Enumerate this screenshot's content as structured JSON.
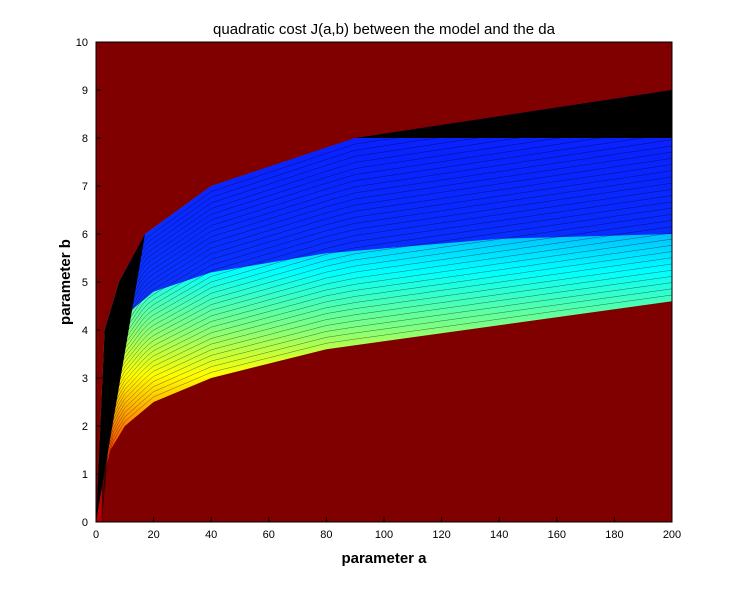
{
  "chart_data": {
    "type": "heatmap",
    "title": "quadratic cost J(a,b) between the model and the da",
    "xlabel": "parameter a",
    "ylabel": "parameter b",
    "xlim": [
      0,
      200
    ],
    "ylim": [
      0,
      10
    ],
    "x_ticks": [
      "0",
      "20",
      "40",
      "60",
      "80",
      "100",
      "120",
      "140",
      "160",
      "180",
      "200"
    ],
    "y_ticks": [
      "0",
      "1",
      "2",
      "3",
      "4",
      "5",
      "6",
      "7",
      "8",
      "9",
      "10"
    ],
    "colormap": "jet",
    "background_color": "#800000",
    "saturated_region_color": "#000000",
    "contour_line_color": "#000000",
    "regions": {
      "upper_black_boundary": [
        [
          0,
          0
        ],
        [
          3,
          4
        ],
        [
          8,
          5
        ],
        [
          17,
          6
        ],
        [
          40,
          7
        ],
        [
          90,
          8
        ],
        [
          200,
          9
        ]
      ],
      "lower_boundary": [
        [
          2,
          0
        ],
        [
          3,
          1
        ],
        [
          5,
          1.5
        ],
        [
          10,
          2
        ],
        [
          20,
          2.5
        ],
        [
          40,
          3
        ],
        [
          80,
          3.6
        ],
        [
          140,
          4.1
        ],
        [
          200,
          4.6
        ]
      ],
      "blue_valley_steps": [
        [
          17,
          6
        ],
        [
          40,
          7
        ],
        [
          90,
          8
        ],
        [
          200,
          8
        ]
      ]
    }
  }
}
